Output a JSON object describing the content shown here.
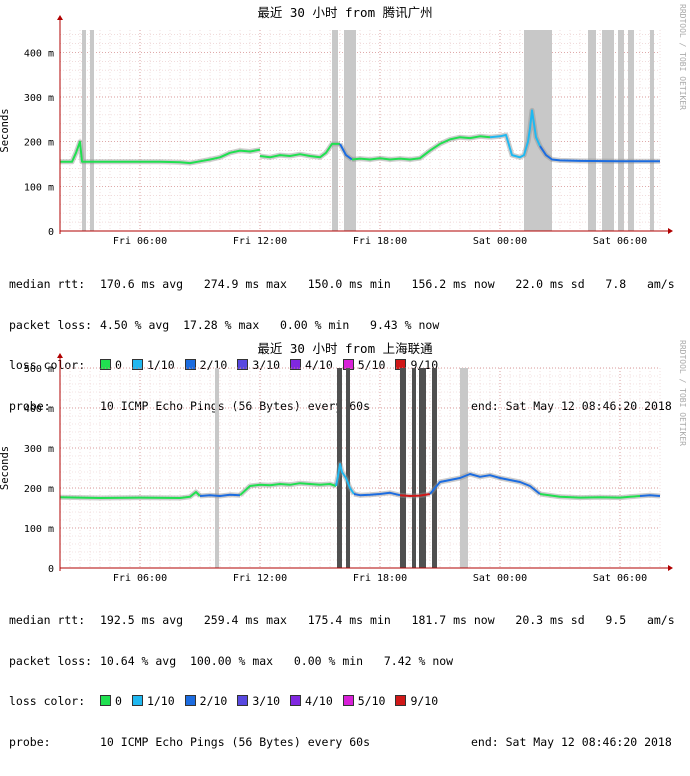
{
  "loss_legend": [
    {
      "label": "0",
      "color": "#20e050"
    },
    {
      "label": "1/10",
      "color": "#20b8f0"
    },
    {
      "label": "2/10",
      "color": "#1c6ce0"
    },
    {
      "label": "3/10",
      "color": "#5848e0"
    },
    {
      "label": "4/10",
      "color": "#8028e0"
    },
    {
      "label": "5/10",
      "color": "#d820d8"
    },
    {
      "label": "9/10",
      "color": "#d01818"
    }
  ],
  "panels": [
    {
      "title": "最近 30 小时 from 腾讯广州",
      "ylabel": "Seconds",
      "side_label": "RRDTOOL / TOBI OETIKER",
      "stats": {
        "median_label": "median rtt:",
        "median": "170.6 ms avg   274.9 ms max   150.0 ms min   156.2 ms now   22.0 ms sd   7.8   am/s",
        "loss_label": "packet loss:",
        "loss": "4.50 % avg  17.28 % max   0.00 % min   9.43 % now",
        "color_label": "loss color:",
        "probe_label": "probe:",
        "probe": "10 ICMP Echo Pings (56 Bytes) every 60s",
        "end": "end: Sat May 12 08:46:20 2018"
      },
      "chart_data": {
        "type": "line",
        "title": "最近 30 小时 from 腾讯广州",
        "ylabel": "Seconds",
        "ylim": [
          0,
          450
        ],
        "y_ticks": [
          {
            "value": 0,
            "label": "0"
          },
          {
            "value": 100,
            "label": "100 m"
          },
          {
            "value": 200,
            "label": "200 m"
          },
          {
            "value": 300,
            "label": "300 m"
          },
          {
            "value": 400,
            "label": "400 m"
          }
        ],
        "xlim": [
          0,
          30
        ],
        "x_ticks": [
          {
            "value": 4.0,
            "label": "Fri 06:00"
          },
          {
            "value": 10.0,
            "label": "Fri 12:00"
          },
          {
            "value": 16.0,
            "label": "Fri 18:00"
          },
          {
            "value": 22.0,
            "label": "Sat 00:00"
          },
          {
            "value": 28.0,
            "label": "Sat 06:00"
          }
        ],
        "grid": true,
        "loss_bands": [
          {
            "start": 1.1,
            "end": 1.3,
            "color": "#c8c8c8"
          },
          {
            "start": 1.5,
            "end": 1.7,
            "color": "#c8c8c8"
          },
          {
            "start": 13.6,
            "end": 13.9,
            "color": "#c8c8c8"
          },
          {
            "start": 14.2,
            "end": 14.8,
            "color": "#c8c8c8"
          },
          {
            "start": 23.2,
            "end": 24.6,
            "color": "#c8c8c8"
          },
          {
            "start": 26.4,
            "end": 26.8,
            "color": "#c8c8c8"
          },
          {
            "start": 27.1,
            "end": 27.7,
            "color": "#c8c8c8"
          },
          {
            "start": 27.9,
            "end": 28.2,
            "color": "#c8c8c8"
          },
          {
            "start": 28.4,
            "end": 28.7,
            "color": "#c8c8c8"
          },
          {
            "start": 29.5,
            "end": 29.7,
            "color": "#c8c8c8"
          }
        ],
        "segments": [
          {
            "color": "#20e050",
            "points": [
              [
                0,
                155
              ],
              [
                0.6,
                155
              ],
              [
                0.8,
                175
              ],
              [
                1.0,
                200
              ],
              [
                1.1,
                155
              ],
              [
                1.5,
                155
              ],
              [
                2.5,
                155
              ],
              [
                5,
                155
              ],
              [
                6,
                154
              ],
              [
                6.5,
                152
              ],
              [
                7,
                156
              ],
              [
                7.5,
                160
              ],
              [
                8,
                165
              ],
              [
                8.5,
                175
              ],
              [
                9,
                180
              ],
              [
                9.5,
                178
              ],
              [
                10,
                182
              ]
            ]
          },
          {
            "color": "#20e050",
            "points": [
              [
                10,
                168
              ],
              [
                10.5,
                165
              ],
              [
                11,
                170
              ],
              [
                11.5,
                168
              ],
              [
                12,
                172
              ],
              [
                12.5,
                168
              ],
              [
                13,
                165
              ],
              [
                13.3,
                175
              ],
              [
                13.6,
                195
              ],
              [
                14,
                195
              ]
            ]
          },
          {
            "color": "#1c6ce0",
            "points": [
              [
                14,
                195
              ],
              [
                14.3,
                170
              ],
              [
                14.6,
                160
              ]
            ]
          },
          {
            "color": "#20e050",
            "points": [
              [
                14.6,
                160
              ],
              [
                15,
                162
              ],
              [
                15.5,
                160
              ],
              [
                16,
                163
              ],
              [
                16.5,
                160
              ],
              [
                17,
                162
              ],
              [
                17.5,
                160
              ],
              [
                18,
                163
              ],
              [
                18.5,
                180
              ],
              [
                19,
                195
              ],
              [
                19.5,
                205
              ],
              [
                20,
                210
              ],
              [
                20.5,
                208
              ],
              [
                21,
                212
              ],
              [
                21.5,
                210
              ]
            ]
          },
          {
            "color": "#20b8f0",
            "points": [
              [
                21.5,
                210
              ],
              [
                22,
                212
              ],
              [
                22.3,
                215
              ],
              [
                22.6,
                170
              ],
              [
                23,
                165
              ],
              [
                23.2,
                170
              ],
              [
                23.4,
                200
              ],
              [
                23.5,
                230
              ],
              [
                23.6,
                270
              ],
              [
                23.8,
                210
              ],
              [
                24,
                190
              ]
            ]
          },
          {
            "color": "#1c6ce0",
            "points": [
              [
                24,
                190
              ],
              [
                24.3,
                170
              ],
              [
                24.6,
                160
              ],
              [
                25,
                158
              ],
              [
                26,
                157
              ],
              [
                28,
                156
              ],
              [
                30,
                156
              ]
            ]
          }
        ]
      }
    },
    {
      "title": "最近 30 小时 from 上海联通",
      "ylabel": "Seconds",
      "side_label": "RRDTOOL / TOBI OETIKER",
      "stats": {
        "median_label": "median rtt:",
        "median": "192.5 ms avg   259.4 ms max   175.4 ms min   181.7 ms now   20.3 ms sd   9.5   am/s",
        "loss_label": "packet loss:",
        "loss": "10.64 % avg  100.00 % max   0.00 % min   7.42 % now",
        "color_label": "loss color:",
        "probe_label": "probe:",
        "probe": "10 ICMP Echo Pings (56 Bytes) every 60s",
        "end": "end: Sat May 12 08:46:20 2018"
      },
      "chart_data": {
        "type": "line",
        "title": "最近 30 小时 from 上海联通",
        "ylabel": "Seconds",
        "ylim": [
          0,
          500
        ],
        "y_ticks": [
          {
            "value": 0,
            "label": "0"
          },
          {
            "value": 100,
            "label": "100 m"
          },
          {
            "value": 200,
            "label": "200 m"
          },
          {
            "value": 300,
            "label": "300 m"
          },
          {
            "value": 400,
            "label": "400 m"
          },
          {
            "value": 500,
            "label": "500 m"
          }
        ],
        "xlim": [
          0,
          30
        ],
        "x_ticks": [
          {
            "value": 4.0,
            "label": "Fri 06:00"
          },
          {
            "value": 10.0,
            "label": "Fri 12:00"
          },
          {
            "value": 16.0,
            "label": "Fri 18:00"
          },
          {
            "value": 22.0,
            "label": "Sat 00:00"
          },
          {
            "value": 28.0,
            "label": "Sat 06:00"
          }
        ],
        "grid": true,
        "loss_bands": [
          {
            "start": 7.75,
            "end": 7.95,
            "color": "#c8c8c8"
          },
          {
            "start": 13.85,
            "end": 14.1,
            "color": "#505050"
          },
          {
            "start": 14.3,
            "end": 14.5,
            "color": "#505050"
          },
          {
            "start": 17.0,
            "end": 17.3,
            "color": "#505050"
          },
          {
            "start": 17.6,
            "end": 17.8,
            "color": "#505050"
          },
          {
            "start": 17.95,
            "end": 18.3,
            "color": "#505050"
          },
          {
            "start": 18.6,
            "end": 18.85,
            "color": "#505050"
          },
          {
            "start": 20.0,
            "end": 20.4,
            "color": "#c8c8c8"
          }
        ],
        "segments": [
          {
            "color": "#20e050",
            "points": [
              [
                0,
                177
              ],
              [
                2,
                175
              ],
              [
                4,
                176
              ],
              [
                6,
                175
              ],
              [
                6.5,
                178
              ],
              [
                6.8,
                190
              ],
              [
                7,
                180
              ]
            ]
          },
          {
            "color": "#1c6ce0",
            "points": [
              [
                7,
                180
              ],
              [
                7.5,
                182
              ],
              [
                8,
                180
              ],
              [
                8.5,
                183
              ],
              [
                9,
                182
              ]
            ]
          },
          {
            "color": "#20e050",
            "points": [
              [
                9,
                182
              ],
              [
                9.5,
                205
              ],
              [
                10,
                208
              ],
              [
                10.5,
                207
              ],
              [
                11,
                210
              ],
              [
                11.5,
                208
              ],
              [
                12,
                212
              ],
              [
                12.5,
                210
              ],
              [
                13,
                208
              ],
              [
                13.5,
                210
              ],
              [
                13.8,
                205
              ]
            ]
          },
          {
            "color": "#20b8f0",
            "points": [
              [
                13.8,
                205
              ],
              [
                13.9,
                230
              ],
              [
                14.0,
                260
              ],
              [
                14.1,
                240
              ],
              [
                14.3,
                225
              ],
              [
                14.5,
                200
              ],
              [
                14.7,
                185
              ]
            ]
          },
          {
            "color": "#1c6ce0",
            "points": [
              [
                14.7,
                185
              ],
              [
                15,
                182
              ],
              [
                15.5,
                183
              ],
              [
                16,
                185
              ],
              [
                16.5,
                188
              ],
              [
                17,
                182
              ]
            ]
          },
          {
            "color": "#d01818",
            "points": [
              [
                17,
                182
              ],
              [
                17.5,
                180
              ],
              [
                18,
                181
              ],
              [
                18.5,
                185
              ]
            ]
          },
          {
            "color": "#1c6ce0",
            "points": [
              [
                18.5,
                185
              ],
              [
                19,
                215
              ],
              [
                19.5,
                220
              ],
              [
                20,
                225
              ],
              [
                20.5,
                235
              ],
              [
                21,
                228
              ],
              [
                21.5,
                232
              ],
              [
                22,
                225
              ],
              [
                22.5,
                220
              ],
              [
                23,
                215
              ],
              [
                23.5,
                205
              ],
              [
                24,
                185
              ]
            ]
          },
          {
            "color": "#20e050",
            "points": [
              [
                24,
                185
              ],
              [
                25,
                178
              ],
              [
                26,
                176
              ],
              [
                27,
                177
              ],
              [
                28,
                176
              ],
              [
                28.5,
                178
              ],
              [
                29,
                180
              ]
            ]
          },
          {
            "color": "#1c6ce0",
            "points": [
              [
                29,
                180
              ],
              [
                29.5,
                182
              ],
              [
                30,
                180
              ]
            ]
          }
        ]
      }
    }
  ]
}
